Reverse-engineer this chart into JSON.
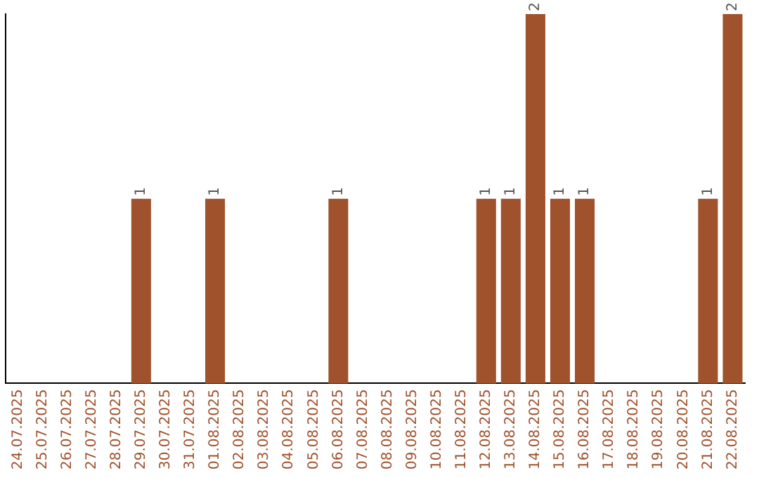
{
  "chart_data": {
    "type": "bar",
    "categories": [
      "24.07.2025",
      "25.07.2025",
      "26.07.2025",
      "27.07.2025",
      "28.07.2025",
      "29.07.2025",
      "30.07.2025",
      "31.07.2025",
      "01.08.2025",
      "02.08.2025",
      "03.08.2025",
      "04.08.2025",
      "05.08.2025",
      "06.08.2025",
      "07.08.2025",
      "08.08.2025",
      "09.08.2025",
      "10.08.2025",
      "11.08.2025",
      "12.08.2025",
      "13.08.2025",
      "14.08.2025",
      "15.08.2025",
      "16.08.2025",
      "17.08.2025",
      "18.08.2025",
      "19.08.2025",
      "20.08.2025",
      "21.08.2025",
      "22.08.2025"
    ],
    "values": [
      0,
      0,
      0,
      0,
      0,
      1,
      0,
      0,
      1,
      0,
      0,
      0,
      0,
      1,
      0,
      0,
      0,
      0,
      0,
      1,
      1,
      2,
      1,
      1,
      0,
      0,
      0,
      0,
      1,
      2
    ],
    "value_labels": [
      null,
      null,
      null,
      null,
      null,
      "1",
      null,
      null,
      "1",
      null,
      null,
      null,
      null,
      "1",
      null,
      null,
      null,
      null,
      null,
      "1",
      "1",
      "2",
      "1",
      "1",
      null,
      null,
      null,
      null,
      "1",
      "2"
    ],
    "color": "#a0522d",
    "grid": false,
    "legend": false,
    "tick_labels": "x"
  }
}
